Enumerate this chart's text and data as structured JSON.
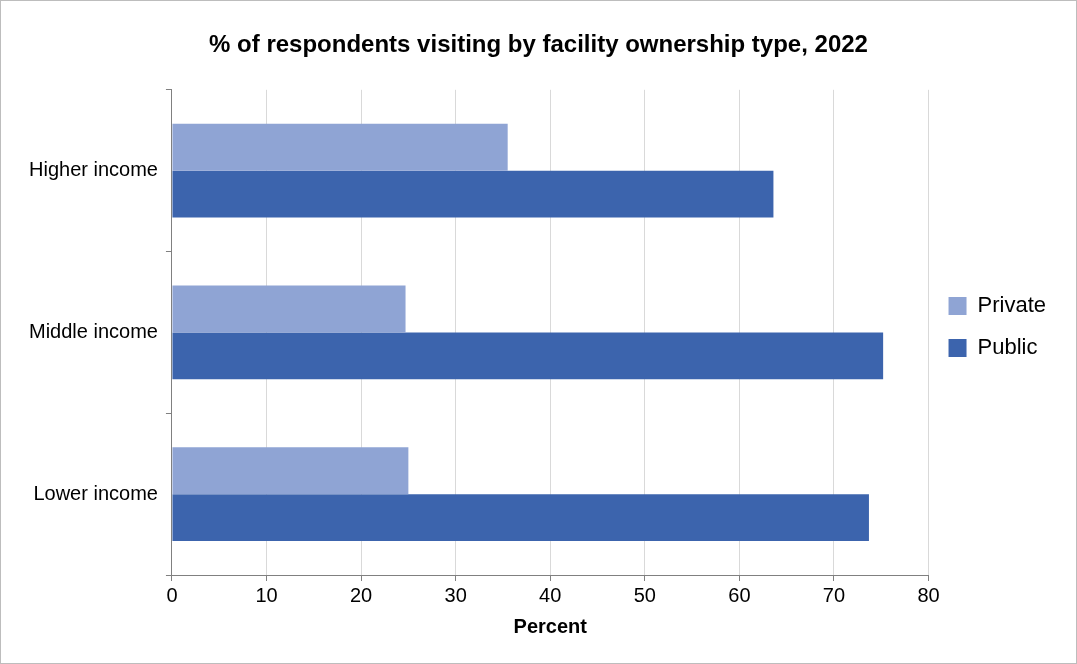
{
  "chart_data": {
    "type": "bar",
    "orientation": "horizontal",
    "title": "% of respondents visiting by facility ownership type, 2022",
    "xlabel": "Percent",
    "categories": [
      "Higher income",
      "Middle income",
      "Lower income"
    ],
    "series": [
      {
        "name": "Private",
        "color": "#8fa4d4",
        "values": [
          35.5,
          24.7,
          25.0
        ]
      },
      {
        "name": "Public",
        "color": "#3c64ad",
        "values": [
          63.6,
          75.2,
          73.7
        ]
      }
    ],
    "xlim": [
      0,
      80
    ],
    "xticks": [
      0,
      10,
      20,
      30,
      40,
      50,
      60,
      70,
      80
    ],
    "grid": "x",
    "legend": "right"
  }
}
